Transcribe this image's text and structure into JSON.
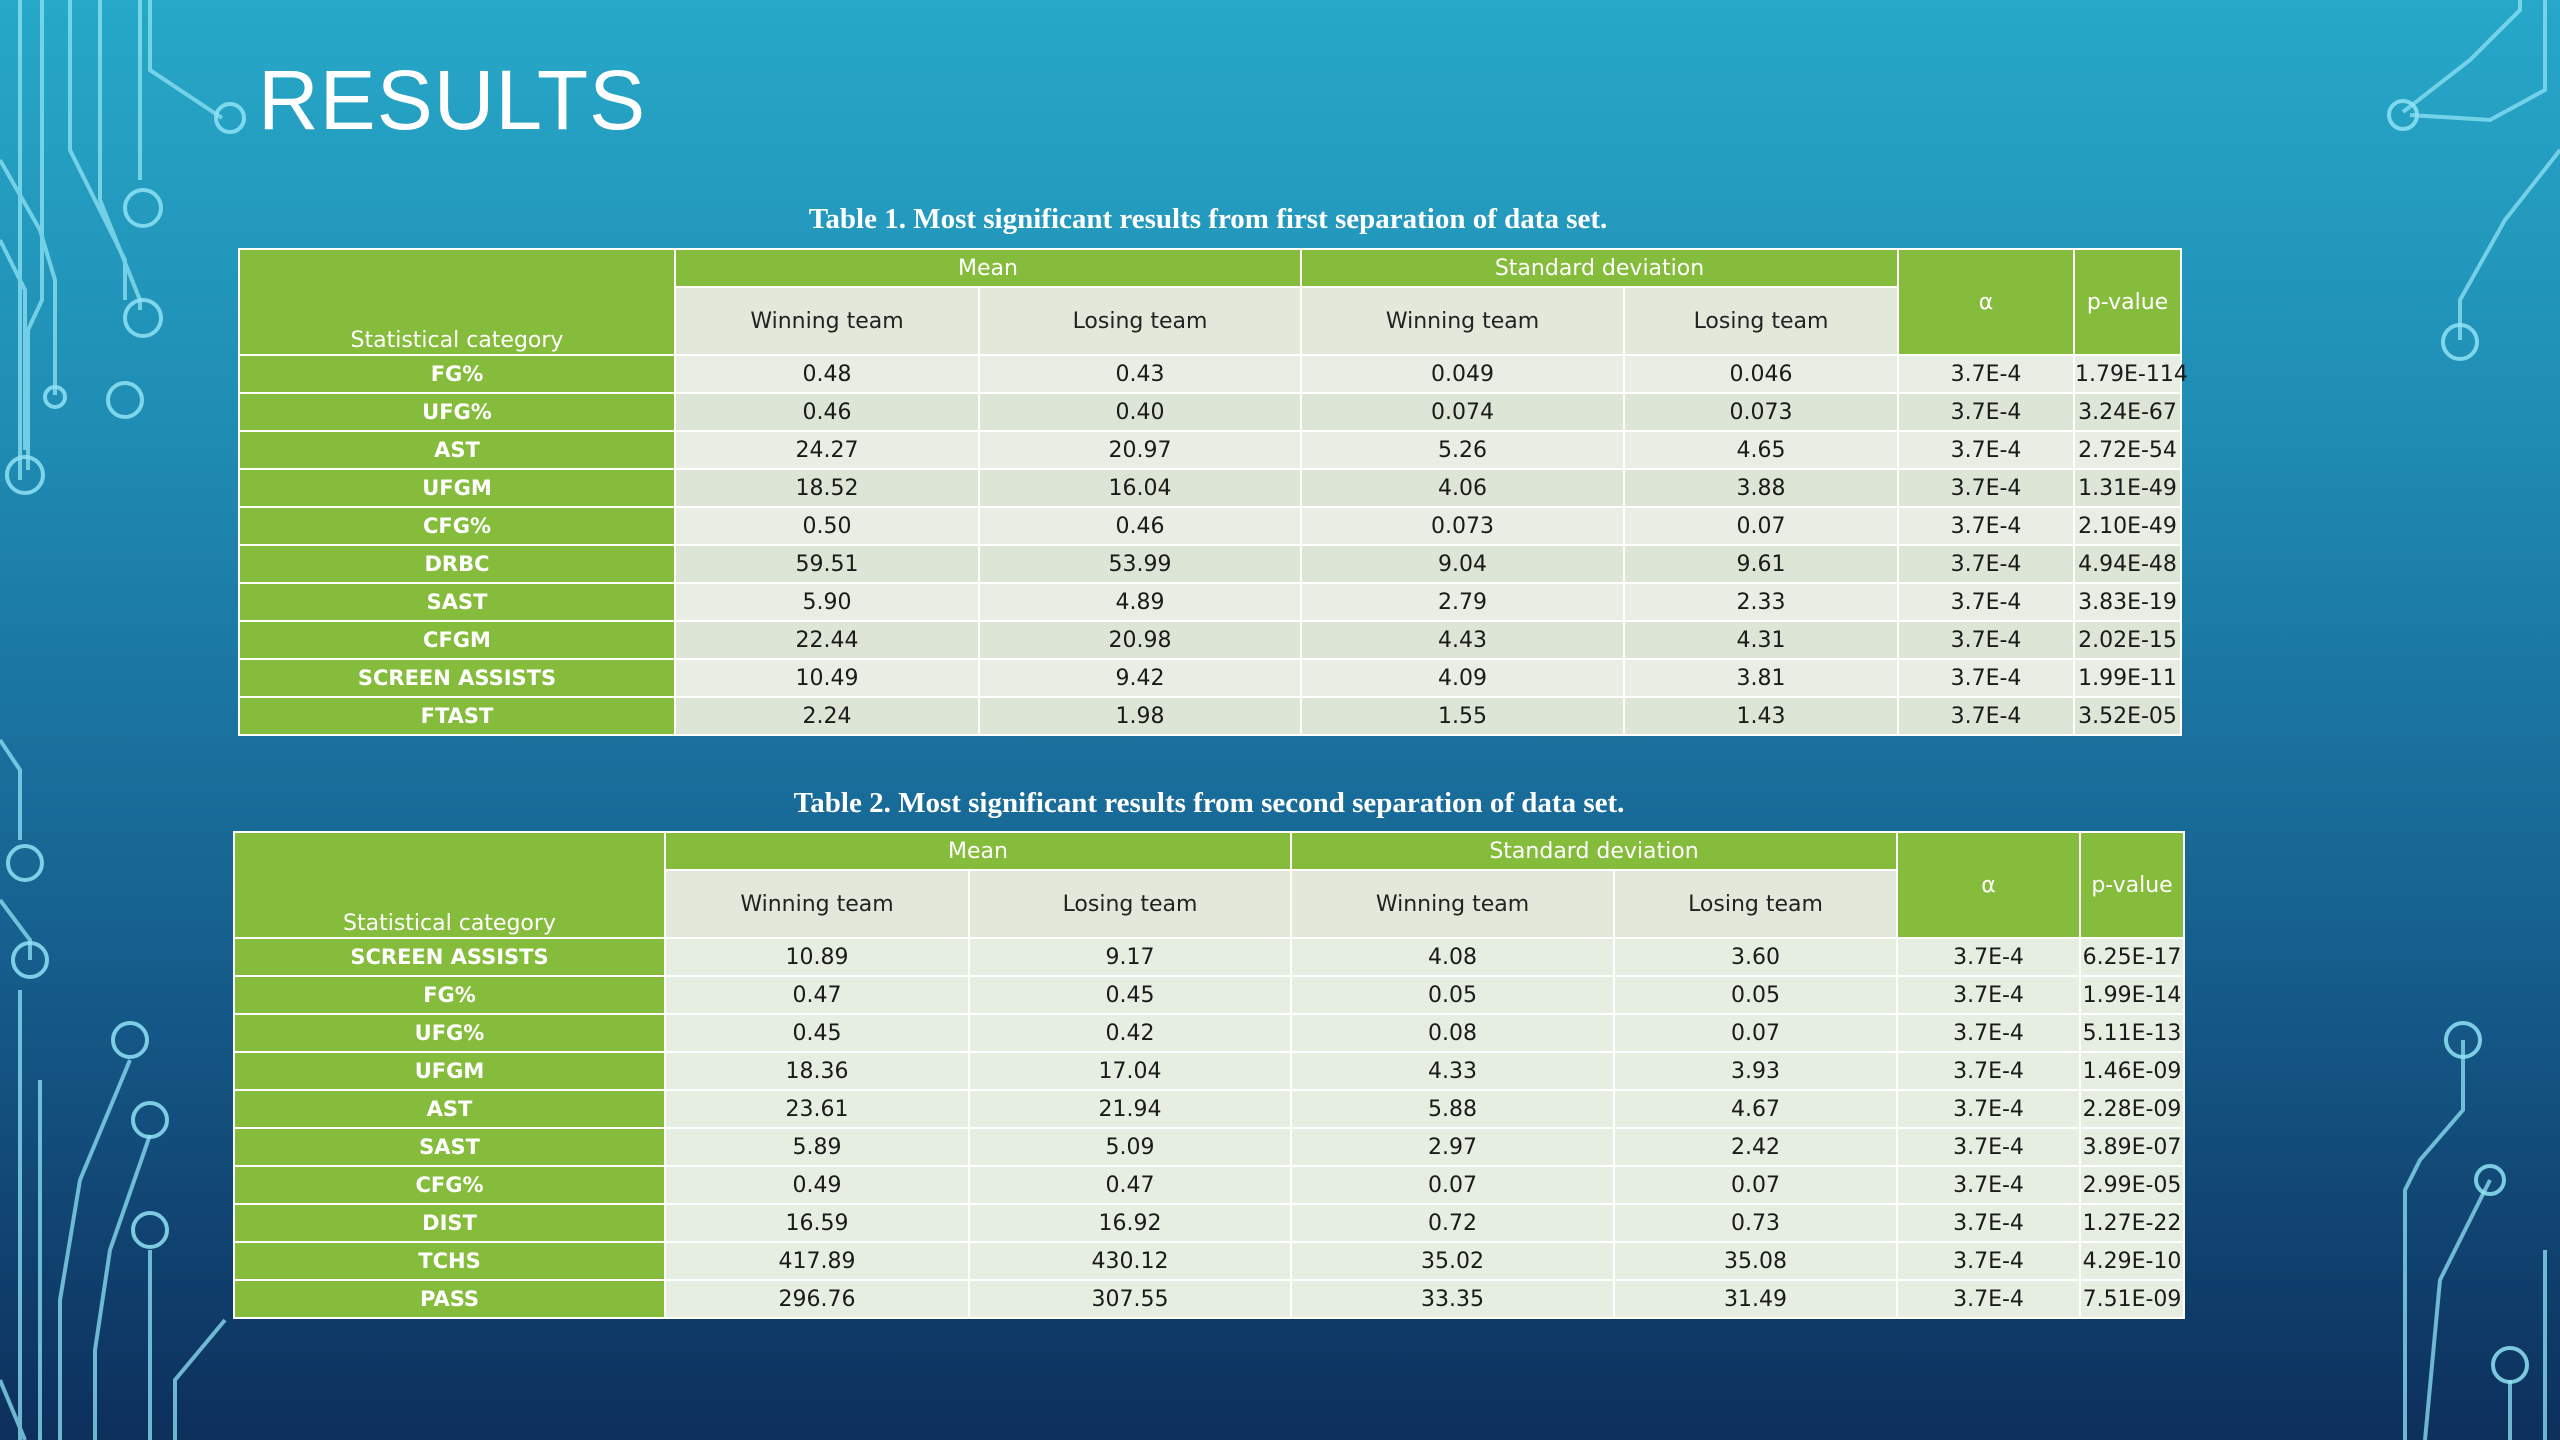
{
  "slide": {
    "title": "RESULTS"
  },
  "table1": {
    "caption": "Table 1. Most significant results from first separation of data set.",
    "header": {
      "category": "Statistical category",
      "mean": "Mean",
      "std": "Standard deviation",
      "alpha": "α",
      "pvalue": "p-value",
      "winning": "Winning team",
      "losing": "Losing team"
    },
    "rows": [
      {
        "cat": "FG%",
        "mw": "0.48",
        "ml": "0.43",
        "sw": "0.049",
        "sl": "0.046",
        "a": "3.7E-4",
        "p": "1.79E-114"
      },
      {
        "cat": "UFG%",
        "mw": "0.46",
        "ml": "0.40",
        "sw": "0.074",
        "sl": "0.073",
        "a": "3.7E-4",
        "p": "3.24E-67"
      },
      {
        "cat": "AST",
        "mw": "24.27",
        "ml": "20.97",
        "sw": "5.26",
        "sl": "4.65",
        "a": "3.7E-4",
        "p": "2.72E-54"
      },
      {
        "cat": "UFGM",
        "mw": "18.52",
        "ml": "16.04",
        "sw": "4.06",
        "sl": "3.88",
        "a": "3.7E-4",
        "p": "1.31E-49"
      },
      {
        "cat": "CFG%",
        "mw": "0.50",
        "ml": "0.46",
        "sw": "0.073",
        "sl": "0.07",
        "a": "3.7E-4",
        "p": "2.10E-49"
      },
      {
        "cat": "DRBC",
        "mw": "59.51",
        "ml": "53.99",
        "sw": "9.04",
        "sl": "9.61",
        "a": "3.7E-4",
        "p": "4.94E-48"
      },
      {
        "cat": "SAST",
        "mw": "5.90",
        "ml": "4.89",
        "sw": "2.79",
        "sl": "2.33",
        "a": "3.7E-4",
        "p": "3.83E-19"
      },
      {
        "cat": "CFGM",
        "mw": "22.44",
        "ml": "20.98",
        "sw": "4.43",
        "sl": "4.31",
        "a": "3.7E-4",
        "p": "2.02E-15"
      },
      {
        "cat": "SCREEN ASSISTS",
        "mw": "10.49",
        "ml": "9.42",
        "sw": "4.09",
        "sl": "3.81",
        "a": "3.7E-4",
        "p": "1.99E-11"
      },
      {
        "cat": "FTAST",
        "mw": "2.24",
        "ml": "1.98",
        "sw": "1.55",
        "sl": "1.43",
        "a": "3.7E-4",
        "p": "3.52E-05"
      }
    ]
  },
  "table2": {
    "caption": "Table 2. Most significant results from second separation of data set.",
    "header": {
      "category": "Statistical category",
      "mean": "Mean",
      "std": "Standard deviation",
      "alpha": "α",
      "pvalue": "p-value",
      "winning": "Winning team",
      "losing": "Losing team"
    },
    "rows": [
      {
        "cat": "SCREEN ASSISTS",
        "mw": "10.89",
        "ml": "9.17",
        "sw": "4.08",
        "sl": "3.60",
        "a": "3.7E-4",
        "p": "6.25E-17"
      },
      {
        "cat": "FG%",
        "mw": "0.47",
        "ml": "0.45",
        "sw": "0.05",
        "sl": "0.05",
        "a": "3.7E-4",
        "p": "1.99E-14"
      },
      {
        "cat": "UFG%",
        "mw": "0.45",
        "ml": "0.42",
        "sw": "0.08",
        "sl": "0.07",
        "a": "3.7E-4",
        "p": "5.11E-13"
      },
      {
        "cat": "UFGM",
        "mw": "18.36",
        "ml": "17.04",
        "sw": "4.33",
        "sl": "3.93",
        "a": "3.7E-4",
        "p": "1.46E-09"
      },
      {
        "cat": "AST",
        "mw": "23.61",
        "ml": "21.94",
        "sw": "5.88",
        "sl": "4.67",
        "a": "3.7E-4",
        "p": "2.28E-09"
      },
      {
        "cat": "SAST",
        "mw": "5.89",
        "ml": "5.09",
        "sw": "2.97",
        "sl": "2.42",
        "a": "3.7E-4",
        "p": "3.89E-07"
      },
      {
        "cat": "CFG%",
        "mw": "0.49",
        "ml": "0.47",
        "sw": "0.07",
        "sl": "0.07",
        "a": "3.7E-4",
        "p": "2.99E-05"
      },
      {
        "cat": "DIST",
        "mw": "16.59",
        "ml": "16.92",
        "sw": "0.72",
        "sl": "0.73",
        "a": "3.7E-4",
        "p": "1.27E-22"
      },
      {
        "cat": "TCHS",
        "mw": "417.89",
        "ml": "430.12",
        "sw": "35.02",
        "sl": "35.08",
        "a": "3.7E-4",
        "p": "4.29E-10"
      },
      {
        "cat": "PASS",
        "mw": "296.76",
        "ml": "307.55",
        "sw": "33.35",
        "sl": "31.49",
        "a": "3.7E-4",
        "p": "7.51E-09"
      }
    ]
  },
  "colors": {
    "header_green": "#86bc3b",
    "cell_light": "#e8eee3",
    "background_top": "#27a8c8",
    "background_bottom": "#0d2f5c",
    "circuit_lines": "#8fe3f5"
  }
}
